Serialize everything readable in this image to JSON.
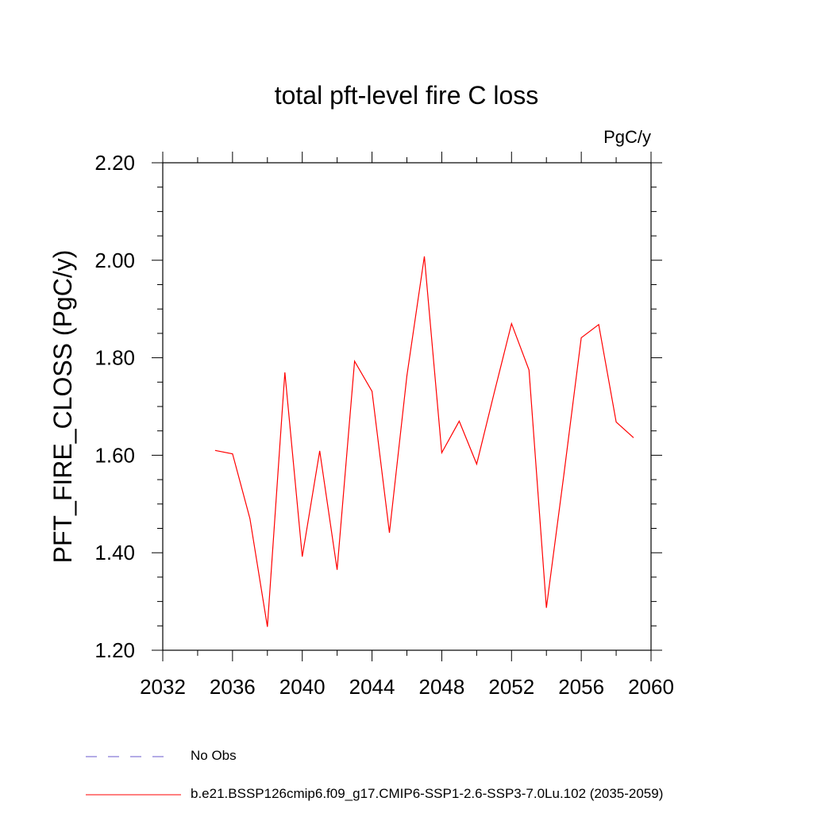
{
  "chart_data": {
    "type": "line",
    "title": "total pft-level fire C loss",
    "units": "PgC/y",
    "ylabel": "PFT_FIRE_CLOSS  (PgC/y)",
    "xlabel": "",
    "xlim": [
      2032,
      2060
    ],
    "ylim": [
      1.2,
      2.2
    ],
    "xticks": [
      2032,
      2036,
      2040,
      2044,
      2048,
      2052,
      2056,
      2060
    ],
    "yticks": [
      1.2,
      1.4,
      1.6,
      1.8,
      2.0,
      2.2
    ],
    "ytick_labels": [
      "1.20",
      "1.40",
      "1.60",
      "1.80",
      "2.00",
      "2.20"
    ],
    "series": [
      {
        "name": "b.e21.BSSP126cmip6.f09_g17.CMIP6-SSP1-2.6-SSP3-7.0Lu.102 (2035-2059)",
        "color": "#ff0000",
        "style": "solid",
        "x": [
          2035,
          2036,
          2037,
          2038,
          2039,
          2040,
          2041,
          2042,
          2043,
          2044,
          2045,
          2046,
          2047,
          2048,
          2049,
          2050,
          2051,
          2052,
          2053,
          2054,
          2055,
          2056,
          2057,
          2058,
          2059
        ],
        "values": [
          1.61,
          1.603,
          1.47,
          1.248,
          1.77,
          1.392,
          1.609,
          1.365,
          1.793,
          1.731,
          1.441,
          1.763,
          2.008,
          1.605,
          1.67,
          1.582,
          1.727,
          1.87,
          1.775,
          1.287,
          1.56,
          1.841,
          1.868,
          1.668,
          1.636
        ]
      }
    ],
    "legend": [
      {
        "label": "No Obs",
        "color": "#6a5acd",
        "style": "dashed"
      },
      {
        "label": "b.e21.BSSP126cmip6.f09_g17.CMIP6-SSP1-2.6-SSP3-7.0Lu.102 (2035-2059)",
        "color": "#ff0000",
        "style": "solid"
      }
    ]
  }
}
